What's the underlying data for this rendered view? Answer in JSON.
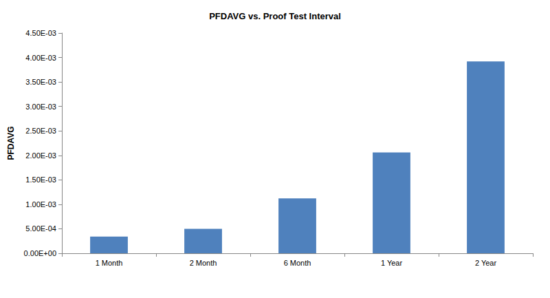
{
  "chart_data": {
    "type": "bar",
    "title": "PFDAVG vs. Proof Test Interval",
    "y_label": "PFDAVG",
    "categories": [
      "1 Month",
      "2 Month",
      "6 Month",
      "1 Year",
      "2 Year"
    ],
    "values": [
      0.00034,
      0.0005,
      0.00112,
      0.00206,
      0.00392
    ],
    "color": "#4f81bd",
    "ylim": [
      0,
      0.0045
    ],
    "yticks": [
      {
        "value": 0,
        "label": "0.00E+00"
      },
      {
        "value": 0.0005,
        "label": "5.00E-04"
      },
      {
        "value": 0.001,
        "label": "1.00E-03"
      },
      {
        "value": 0.0015,
        "label": "1.50E-03"
      },
      {
        "value": 0.002,
        "label": "2.00E-03"
      },
      {
        "value": 0.0025,
        "label": "2.50E-03"
      },
      {
        "value": 0.003,
        "label": "3.00E-03"
      },
      {
        "value": 0.0035,
        "label": "3.50E-03"
      },
      {
        "value": 0.004,
        "label": "4.00E-03"
      },
      {
        "value": 0.0045,
        "label": "4.50E-03"
      }
    ],
    "grid": false
  }
}
